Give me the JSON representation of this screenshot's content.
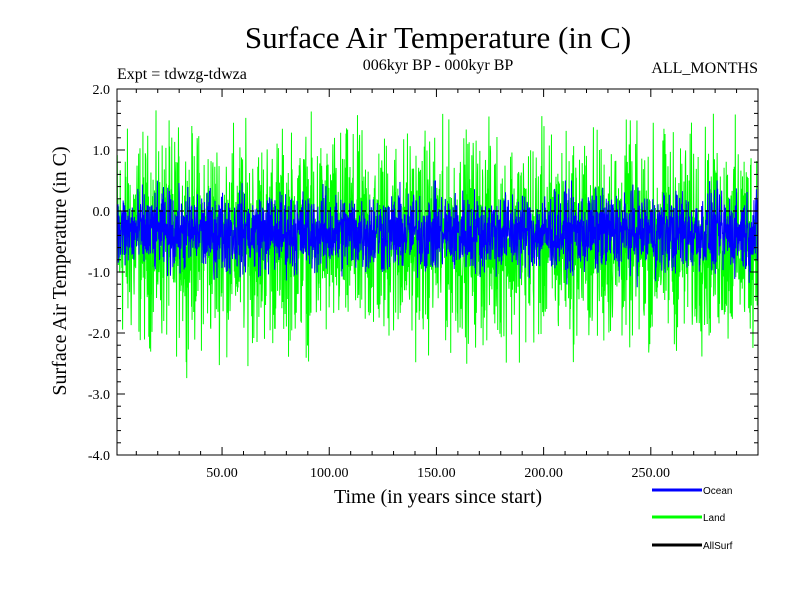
{
  "chart_data": {
    "type": "line",
    "title": "Surface Air Temperature (in C)",
    "subtitle": "006kyr BP - 000kyr BP",
    "left_note": "Expt = tdwzg-tdwza",
    "right_note": "ALL_MONTHS",
    "xlabel": "Time (in years since start)",
    "ylabel": "Surface Air Temperature (in C)",
    "xlim": [
      1,
      300
    ],
    "ylim": [
      -4.0,
      2.0
    ],
    "x_ticks": [
      50,
      100,
      150,
      200,
      250
    ],
    "x_tick_labels": [
      "50.00",
      "100.00",
      "150.00",
      "200.00",
      "250.00"
    ],
    "y_ticks": [
      2.0,
      1.0,
      0.0,
      -1.0,
      -2.0,
      -3.0,
      -4.0
    ],
    "y_tick_labels": [
      "2.0",
      "1.0",
      "0.0",
      "-1.0",
      "-2.0",
      "-3.0",
      "-4.0"
    ],
    "grid": false,
    "legend_position": "bottom-right",
    "series": [
      {
        "name": "Land",
        "color": "#00ff00",
        "x_range": [
          1,
          300
        ],
        "values_approx": {
          "mean": -0.45,
          "min": -3.25,
          "max": 1.65
        }
      },
      {
        "name": "Ocean",
        "color": "#0000ff",
        "x_range": [
          1,
          300
        ],
        "values_approx": {
          "mean": -0.35,
          "min": -1.25,
          "max": 0.5
        }
      },
      {
        "name": "AllSurf",
        "color": "#000000",
        "x_range": [
          1,
          300
        ],
        "values_approx": {
          "mean": 0.0,
          "min": 0.0,
          "max": 0.0
        }
      }
    ],
    "legend_order": [
      "Ocean",
      "Land",
      "AllSurf"
    ]
  }
}
